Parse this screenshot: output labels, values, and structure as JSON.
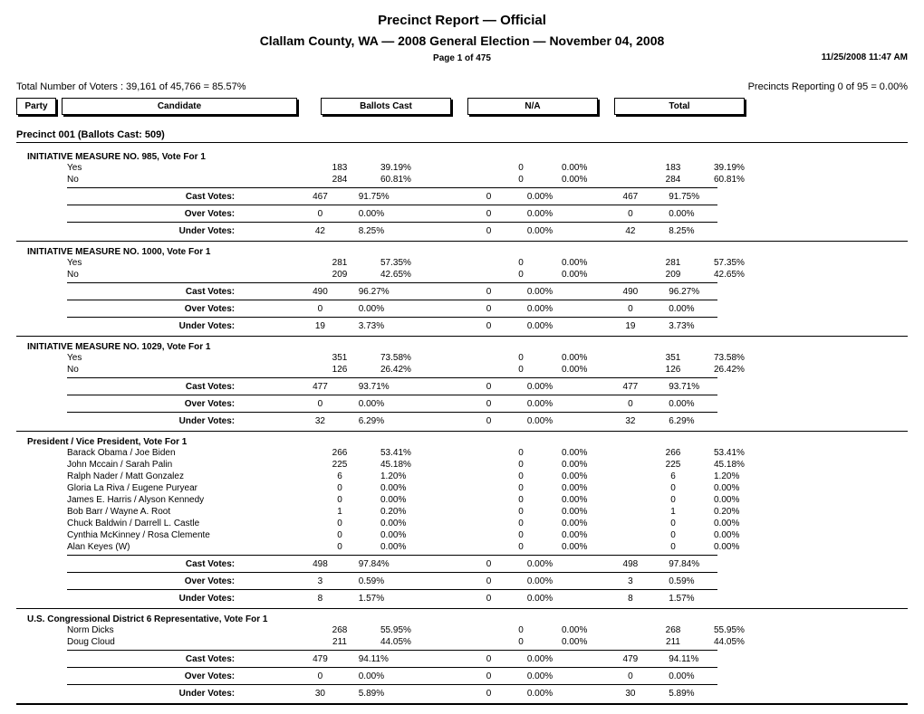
{
  "header": {
    "title": "Precinct Report  —  Official",
    "subtitle": "Clallam County, WA  —  2008 General Election  —  November 04, 2008",
    "page_info": "Page 1 of 475",
    "timestamp": "11/25/2008 11:47 AM",
    "voters_line": "Total Number of Voters : 39,161 of 45,766 = 85.57%",
    "precincts_line": "Precincts Reporting 0 of 95 = 0.00%",
    "col_party": "Party",
    "col_candidate": "Candidate",
    "col_ballots": "Ballots Cast",
    "col_na": "N/A",
    "col_total": "Total"
  },
  "precinct": {
    "label": "Precinct 001  (Ballots Cast: 509)"
  },
  "summary_labels": {
    "cast": "Cast Votes:",
    "over": "Over Votes:",
    "under": "Under Votes:"
  },
  "races": [
    {
      "title": "INITIATIVE MEASURE NO. 985, Vote For 1",
      "rows": [
        {
          "label": "Yes",
          "b": "183",
          "bp": "39.19%",
          "n": "0",
          "np": "0.00%",
          "t": "183",
          "tp": "39.19%"
        },
        {
          "label": "No",
          "b": "284",
          "bp": "60.81%",
          "n": "0",
          "np": "0.00%",
          "t": "284",
          "tp": "60.81%"
        }
      ],
      "summary": [
        {
          "key": "cast",
          "b": "467",
          "bp": "91.75%",
          "n": "0",
          "np": "0.00%",
          "t": "467",
          "tp": "91.75%"
        },
        {
          "key": "over",
          "b": "0",
          "bp": "0.00%",
          "n": "0",
          "np": "0.00%",
          "t": "0",
          "tp": "0.00%"
        },
        {
          "key": "under",
          "b": "42",
          "bp": "8.25%",
          "n": "0",
          "np": "0.00%",
          "t": "42",
          "tp": "8.25%"
        }
      ]
    },
    {
      "title": "INITIATIVE MEASURE NO. 1000, Vote For 1",
      "rows": [
        {
          "label": "Yes",
          "b": "281",
          "bp": "57.35%",
          "n": "0",
          "np": "0.00%",
          "t": "281",
          "tp": "57.35%"
        },
        {
          "label": "No",
          "b": "209",
          "bp": "42.65%",
          "n": "0",
          "np": "0.00%",
          "t": "209",
          "tp": "42.65%"
        }
      ],
      "summary": [
        {
          "key": "cast",
          "b": "490",
          "bp": "96.27%",
          "n": "0",
          "np": "0.00%",
          "t": "490",
          "tp": "96.27%"
        },
        {
          "key": "over",
          "b": "0",
          "bp": "0.00%",
          "n": "0",
          "np": "0.00%",
          "t": "0",
          "tp": "0.00%"
        },
        {
          "key": "under",
          "b": "19",
          "bp": "3.73%",
          "n": "0",
          "np": "0.00%",
          "t": "19",
          "tp": "3.73%"
        }
      ]
    },
    {
      "title": "INITIATIVE MEASURE NO. 1029, Vote For 1",
      "rows": [
        {
          "label": "Yes",
          "b": "351",
          "bp": "73.58%",
          "n": "0",
          "np": "0.00%",
          "t": "351",
          "tp": "73.58%"
        },
        {
          "label": "No",
          "b": "126",
          "bp": "26.42%",
          "n": "0",
          "np": "0.00%",
          "t": "126",
          "tp": "26.42%"
        }
      ],
      "summary": [
        {
          "key": "cast",
          "b": "477",
          "bp": "93.71%",
          "n": "0",
          "np": "0.00%",
          "t": "477",
          "tp": "93.71%"
        },
        {
          "key": "over",
          "b": "0",
          "bp": "0.00%",
          "n": "0",
          "np": "0.00%",
          "t": "0",
          "tp": "0.00%"
        },
        {
          "key": "under",
          "b": "32",
          "bp": "6.29%",
          "n": "0",
          "np": "0.00%",
          "t": "32",
          "tp": "6.29%"
        }
      ]
    },
    {
      "title": "President / Vice President, Vote For 1",
      "rows": [
        {
          "label": "Barack Obama / Joe Biden",
          "b": "266",
          "bp": "53.41%",
          "n": "0",
          "np": "0.00%",
          "t": "266",
          "tp": "53.41%"
        },
        {
          "label": "John Mccain / Sarah Palin",
          "b": "225",
          "bp": "45.18%",
          "n": "0",
          "np": "0.00%",
          "t": "225",
          "tp": "45.18%"
        },
        {
          "label": "Ralph Nader / Matt Gonzalez",
          "b": "6",
          "bp": "1.20%",
          "n": "0",
          "np": "0.00%",
          "t": "6",
          "tp": "1.20%"
        },
        {
          "label": "Gloria La Riva / Eugene Puryear",
          "b": "0",
          "bp": "0.00%",
          "n": "0",
          "np": "0.00%",
          "t": "0",
          "tp": "0.00%"
        },
        {
          "label": "James E. Harris / Alyson Kennedy",
          "b": "0",
          "bp": "0.00%",
          "n": "0",
          "np": "0.00%",
          "t": "0",
          "tp": "0.00%"
        },
        {
          "label": "Bob Barr / Wayne A. Root",
          "b": "1",
          "bp": "0.20%",
          "n": "0",
          "np": "0.00%",
          "t": "1",
          "tp": "0.20%"
        },
        {
          "label": "Chuck Baldwin / Darrell L. Castle",
          "b": "0",
          "bp": "0.00%",
          "n": "0",
          "np": "0.00%",
          "t": "0",
          "tp": "0.00%"
        },
        {
          "label": "Cynthia McKinney / Rosa Clemente",
          "b": "0",
          "bp": "0.00%",
          "n": "0",
          "np": "0.00%",
          "t": "0",
          "tp": "0.00%"
        },
        {
          "label": "Alan Keyes (W)",
          "b": "0",
          "bp": "0.00%",
          "n": "0",
          "np": "0.00%",
          "t": "0",
          "tp": "0.00%"
        }
      ],
      "summary": [
        {
          "key": "cast",
          "b": "498",
          "bp": "97.84%",
          "n": "0",
          "np": "0.00%",
          "t": "498",
          "tp": "97.84%"
        },
        {
          "key": "over",
          "b": "3",
          "bp": "0.59%",
          "n": "0",
          "np": "0.00%",
          "t": "3",
          "tp": "0.59%"
        },
        {
          "key": "under",
          "b": "8",
          "bp": "1.57%",
          "n": "0",
          "np": "0.00%",
          "t": "8",
          "tp": "1.57%"
        }
      ]
    },
    {
      "title": "U.S. Congressional District 6 Representative, Vote For 1",
      "rows": [
        {
          "label": "Norm Dicks",
          "b": "268",
          "bp": "55.95%",
          "n": "0",
          "np": "0.00%",
          "t": "268",
          "tp": "55.95%"
        },
        {
          "label": "Doug Cloud",
          "b": "211",
          "bp": "44.05%",
          "n": "0",
          "np": "0.00%",
          "t": "211",
          "tp": "44.05%"
        }
      ],
      "summary": [
        {
          "key": "cast",
          "b": "479",
          "bp": "94.11%",
          "n": "0",
          "np": "0.00%",
          "t": "479",
          "tp": "94.11%"
        },
        {
          "key": "over",
          "b": "0",
          "bp": "0.00%",
          "n": "0",
          "np": "0.00%",
          "t": "0",
          "tp": "0.00%"
        },
        {
          "key": "under",
          "b": "30",
          "bp": "5.89%",
          "n": "0",
          "np": "0.00%",
          "t": "30",
          "tp": "5.89%"
        }
      ]
    }
  ]
}
